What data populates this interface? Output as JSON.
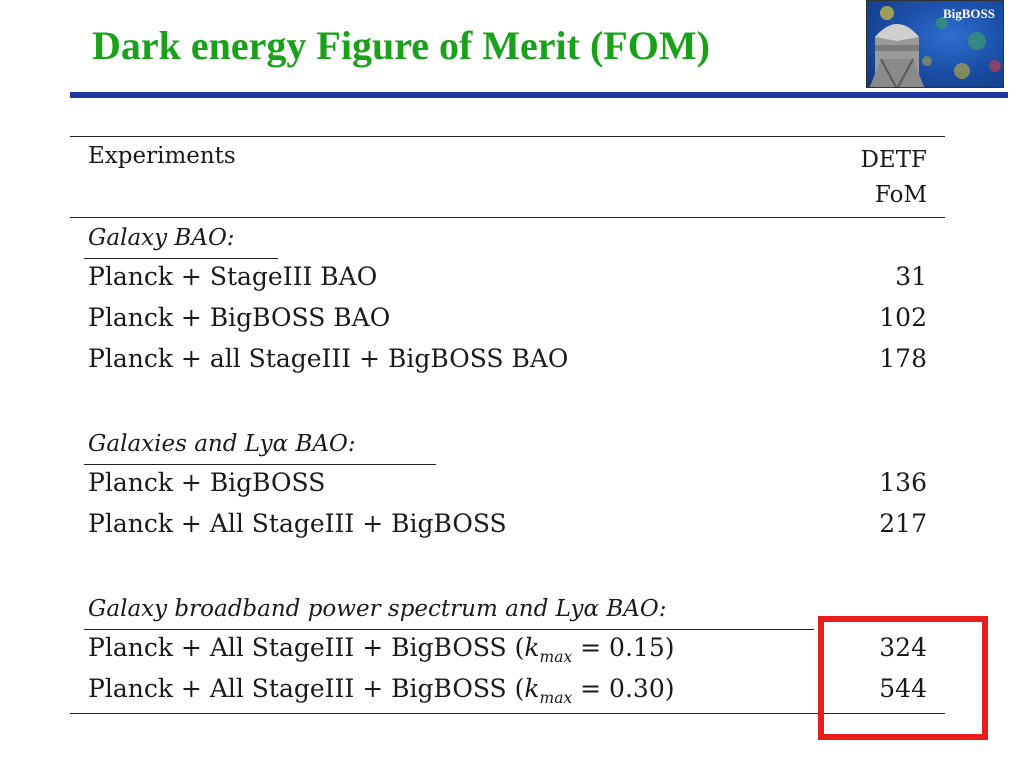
{
  "slide": {
    "title": "Dark energy Figure of Merit (FOM)",
    "title_color": "#1aa11a",
    "rule_color": "#1f35a0",
    "logo_label": "BigBOSS",
    "highlight_color": "#ea1c1c"
  },
  "table": {
    "header": {
      "experiments": "Experiments",
      "fom_line1": "DETF",
      "fom_line2": "FoM"
    },
    "sections": [
      {
        "heading": "Galaxy BAO:",
        "rows": [
          {
            "label": "Planck + StageIII BAO",
            "value": "31"
          },
          {
            "label": "Planck + BigBOSS BAO",
            "value": "102"
          },
          {
            "label": "Planck + all StageIII + BigBOSS BAO",
            "value": "178"
          }
        ]
      },
      {
        "heading": "Galaxies and Lyα BAO:",
        "rows": [
          {
            "label": "Planck + BigBOSS",
            "value": "136"
          },
          {
            "label": "Planck + All StageIII + BigBOSS",
            "value": "217"
          }
        ]
      },
      {
        "heading": "Galaxy broadband power spectrum and Lyα BAO:",
        "rows": [
          {
            "label": "Planck + All StageIII + BigBOSS (",
            "kmax_text": "k",
            "kmax_sub": "max",
            "kmax_value": " = 0.15)",
            "value": "324"
          },
          {
            "label": "Planck + All StageIII + BigBOSS (",
            "kmax_text": "k",
            "kmax_sub": "max",
            "kmax_value": " = 0.30)",
            "value": "544"
          }
        ]
      }
    ]
  }
}
